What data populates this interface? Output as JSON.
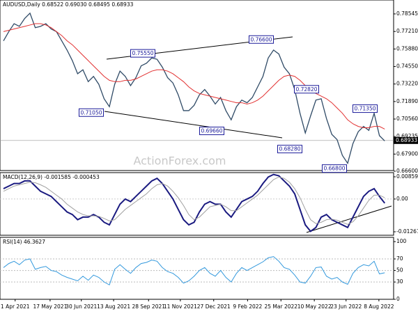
{
  "chart_data": [
    {
      "type": "line",
      "title": "AUDUSD,Daily 0.68522 0.69030 0.68495 0.68933",
      "xlim": [
        -0.66,
        73.68
      ],
      "ylim": [
        0.6665,
        0.796
      ],
      "yticks": [
        0.78545,
        {
          "value": 0.7721,
          "label": "0.77210"
        },
        {
          "value": 0.7588,
          "label": "0.75880"
        },
        {
          "value": 0.7455,
          "label": "0.74550"
        },
        {
          "value": 0.7322,
          "label": "0.73220"
        },
        {
          "value": 0.7189,
          "label": "0.71890"
        },
        {
          "value": 0.7056,
          "label": "0.70560"
        },
        0.69235,
        {
          "value": 0.679,
          "label": "0.67900"
        },
        {
          "value": 0.666,
          "label": "0.66600"
        }
      ],
      "last_price": 0.68933,
      "watermark": "ActionForex.com",
      "annotations": [
        {
          "value": 0.7555,
          "label": "0.75550"
        },
        {
          "value": 0.766,
          "label": "0.76600"
        },
        {
          "value": 0.7105,
          "label": "0.71050"
        },
        {
          "value": 0.6966,
          "label": "0.69660"
        },
        {
          "value": 0.7282,
          "label": "0.72820"
        },
        {
          "value": 0.7135,
          "label": "0.71350"
        },
        {
          "value": 0.6828,
          "label": "0.68280"
        },
        {
          "value": 0.668,
          "label": "0.66800"
        }
      ],
      "series": [
        {
          "name": "AUDUSD",
          "color": "#2f4a66",
          "values": [
            0.765,
            0.772,
            0.778,
            0.776,
            0.782,
            0.786,
            0.775,
            0.776,
            0.778,
            0.774,
            0.772,
            0.765,
            0.758,
            0.75,
            0.74,
            0.743,
            0.734,
            0.738,
            0.732,
            0.721,
            0.715,
            0.732,
            0.742,
            0.738,
            0.731,
            0.737,
            0.746,
            0.748,
            0.752,
            0.751,
            0.745,
            0.737,
            0.733,
            0.724,
            0.712,
            0.712,
            0.716,
            0.724,
            0.728,
            0.723,
            0.717,
            0.722,
            0.712,
            0.705,
            0.715,
            0.72,
            0.718,
            0.722,
            0.73,
            0.738,
            0.752,
            0.758,
            0.755,
            0.745,
            0.74,
            0.728,
            0.71,
            0.695,
            0.708,
            0.72,
            0.721,
            0.706,
            0.694,
            0.69,
            0.678,
            0.672,
            0.687,
            0.696,
            0.7,
            0.697,
            0.71,
            0.693,
            0.689
          ]
        },
        {
          "name": "MA",
          "color": "#e23030",
          "values": [
            0.772,
            0.773,
            0.774,
            0.775,
            0.776,
            0.777,
            0.778,
            0.778,
            0.777,
            0.775,
            0.772,
            0.769,
            0.765,
            0.762,
            0.758,
            0.754,
            0.75,
            0.746,
            0.742,
            0.738,
            0.735,
            0.734,
            0.734,
            0.735,
            0.735,
            0.736,
            0.738,
            0.74,
            0.742,
            0.743,
            0.743,
            0.742,
            0.74,
            0.737,
            0.734,
            0.73,
            0.727,
            0.725,
            0.724,
            0.723,
            0.722,
            0.721,
            0.72,
            0.719,
            0.718,
            0.718,
            0.717,
            0.718,
            0.72,
            0.723,
            0.727,
            0.731,
            0.735,
            0.738,
            0.739,
            0.738,
            0.735,
            0.731,
            0.727,
            0.725,
            0.723,
            0.721,
            0.718,
            0.714,
            0.71,
            0.705,
            0.702,
            0.7,
            0.699,
            0.699,
            0.7,
            0.7,
            0.698
          ]
        }
      ]
    },
    {
      "type": "line",
      "title": "MACD(12,26,9) -0.001585 -0.000453",
      "xlim": [
        -0.66,
        73.68
      ],
      "ylim": [
        -0.01402,
        0.01021
      ],
      "yticks": [
        0.008595,
        {
          "value": 0,
          "label": "0.00"
        },
        -0.01267
      ],
      "series": [
        {
          "name": "MACD",
          "color": "#1a1a80",
          "values": [
            0.004,
            0.005,
            0.006,
            0.006,
            0.007,
            0.007,
            0.005,
            0.003,
            0.002,
            0.001,
            -0.001,
            -0.003,
            -0.005,
            -0.006,
            -0.008,
            -0.007,
            -0.007,
            -0.006,
            -0.007,
            -0.009,
            -0.01,
            -0.006,
            -0.002,
            0,
            -0.001,
            0.001,
            0.003,
            0.005,
            0.007,
            0.008,
            0.006,
            0.003,
            0,
            -0.004,
            -0.008,
            -0.01,
            -0.009,
            -0.005,
            -0.002,
            -0.001,
            -0.002,
            -0.002,
            -0.005,
            -0.007,
            -0.004,
            -0.001,
            0,
            0.001,
            0.003,
            0.006,
            0.0085,
            0.0095,
            0.009,
            0.007,
            0.005,
            0.002,
            -0.004,
            -0.01,
            -0.0125,
            -0.011,
            -0.007,
            -0.006,
            -0.008,
            -0.009,
            -0.01,
            -0.011,
            -0.007,
            -0.003,
            0.001,
            0.003,
            0.004,
            0.001,
            -0.0016
          ]
        },
        {
          "name": "Signal",
          "color": "#a0a0a0",
          "values": [
            0.003,
            0.004,
            0.005,
            0.0055,
            0.006,
            0.0065,
            0.0063,
            0.0055,
            0.0045,
            0.003,
            0.0015,
            0,
            -0.002,
            -0.0035,
            -0.005,
            -0.006,
            -0.0065,
            -0.0065,
            -0.0067,
            -0.0075,
            -0.0085,
            -0.008,
            -0.006,
            -0.004,
            -0.0025,
            -0.001,
            0.0005,
            0.002,
            0.004,
            0.0055,
            0.006,
            0.005,
            0.003,
            0.0005,
            -0.0025,
            -0.006,
            -0.008,
            -0.007,
            -0.005,
            -0.003,
            -0.0025,
            -0.002,
            -0.003,
            -0.0045,
            -0.0045,
            -0.003,
            -0.0015,
            0,
            0.0015,
            0.0035,
            0.0055,
            0.0075,
            0.0085,
            0.008,
            0.0065,
            0.004,
            0.0005,
            -0.004,
            -0.008,
            -0.0095,
            -0.009,
            -0.008,
            -0.0078,
            -0.0082,
            -0.009,
            -0.0098,
            -0.0088,
            -0.0065,
            -0.0035,
            -0.0005,
            0.0015,
            0.0015,
            0.0005
          ]
        }
      ]
    },
    {
      "type": "line",
      "title": "RSI(14) 46.3627",
      "xlim": [
        -0.66,
        73.68
      ],
      "ylim": [
        0,
        107.4
      ],
      "yticks": [
        100,
        70,
        50,
        30,
        0
      ],
      "xticks": [
        {
          "value": 2.2,
          "label": "1 Apr 2021"
        },
        {
          "value": 8.8,
          "label": "17 May 2021"
        },
        {
          "value": 14.7,
          "label": "30 Jun 2021"
        },
        {
          "value": 20.8,
          "label": "13 Aug 2021"
        },
        {
          "value": 27.4,
          "label": "28 Sep 2021"
        },
        {
          "value": 33.4,
          "label": "11 Nov 2021"
        },
        {
          "value": 39.7,
          "label": "27 Dec 2021"
        },
        {
          "value": 46.1,
          "label": "9 Feb 2022"
        },
        {
          "value": 52.4,
          "label": "25 Mar 2022"
        },
        {
          "value": 58.7,
          "label": "10 May 2022"
        },
        {
          "value": 64.7,
          "label": "23 Jun 2022"
        },
        {
          "value": 70.9,
          "label": "8 Aug 2022"
        }
      ],
      "series": [
        {
          "name": "RSI",
          "color": "#3399dd",
          "values": [
            55,
            62,
            66,
            60,
            68,
            70,
            52,
            55,
            57,
            50,
            48,
            42,
            38,
            35,
            32,
            40,
            33,
            42,
            38,
            30,
            25,
            52,
            60,
            52,
            45,
            55,
            62,
            64,
            68,
            66,
            55,
            48,
            45,
            38,
            28,
            32,
            40,
            50,
            55,
            45,
            40,
            50,
            38,
            30,
            45,
            55,
            50,
            55,
            60,
            65,
            72,
            74,
            66,
            55,
            52,
            42,
            30,
            28,
            40,
            55,
            56,
            40,
            35,
            38,
            30,
            26,
            45,
            55,
            60,
            58,
            66,
            44,
            46
          ]
        }
      ]
    }
  ]
}
